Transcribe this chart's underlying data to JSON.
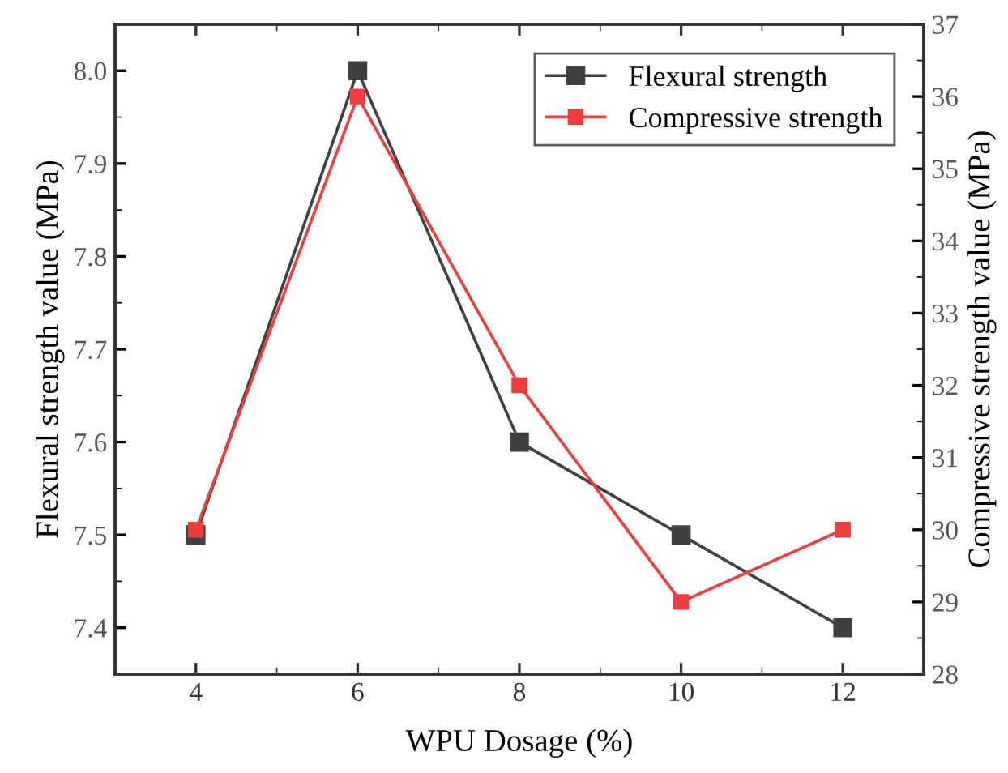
{
  "chart_data": {
    "type": "line",
    "xlabel": "WPU Dosage (%)",
    "ylabel": "Flexural strength value (MPa)",
    "y2label": "Compressive strength value (MPa)",
    "x": [
      4,
      6,
      8,
      10,
      12
    ],
    "xlim": [
      3,
      13
    ],
    "xticks": [
      4,
      6,
      8,
      10,
      12
    ],
    "ylim": [
      7.35,
      8.05
    ],
    "yticks": [
      {
        "value": 7.4,
        "label": "7.4"
      },
      {
        "value": 7.5,
        "label": "7.5"
      },
      {
        "value": 7.6,
        "label": "7.6"
      },
      {
        "value": 7.7,
        "label": "7.7"
      },
      {
        "value": 7.8,
        "label": "7.8"
      },
      {
        "value": 7.9,
        "label": "7.9"
      },
      {
        "value": 8.0,
        "label": "8.0"
      }
    ],
    "y2lim": [
      28,
      37
    ],
    "y2ticks": [
      28,
      29,
      30,
      31,
      32,
      33,
      34,
      35,
      36,
      37
    ],
    "marker": "square",
    "line_style": "solid",
    "legend": "top right",
    "grid": false,
    "series": [
      {
        "name": "Flexural strength",
        "color": "#404040",
        "values": [
          7.5,
          8.0,
          7.6,
          7.5,
          7.4
        ]
      },
      {
        "name": "Compressive strength",
        "color": "#f03c3c",
        "axis": "y2",
        "values": [
          30,
          36,
          32,
          29,
          30
        ]
      }
    ]
  }
}
